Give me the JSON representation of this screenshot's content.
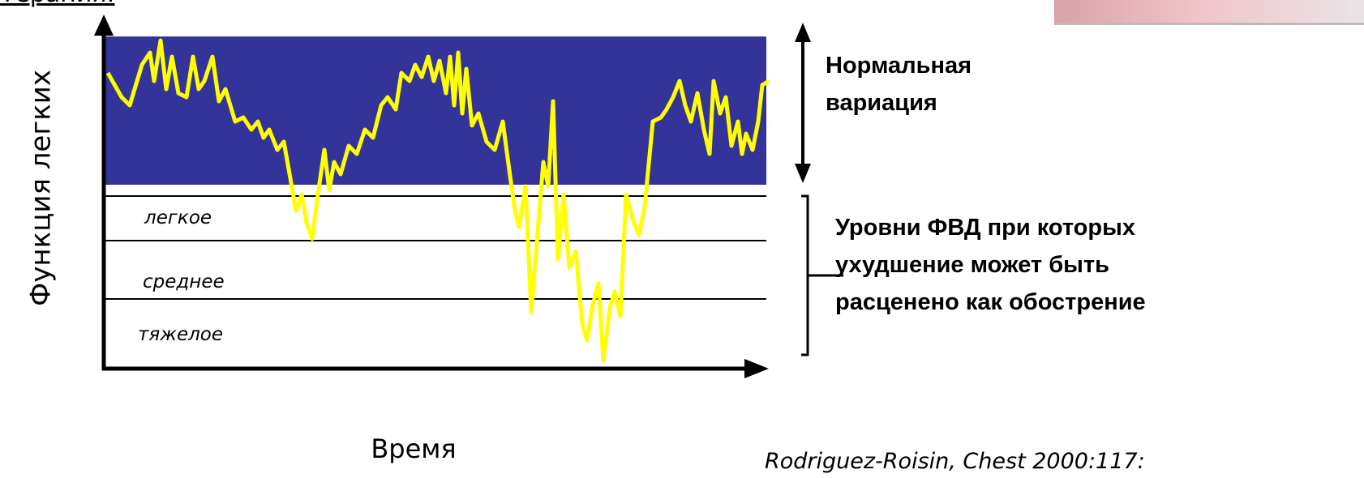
{
  "header": {
    "title": "Терапия:"
  },
  "axes": {
    "y_label": "Функция легких",
    "x_label": "Время"
  },
  "zones": [
    "легкое",
    "среднее",
    "тяжелое"
  ],
  "notes": {
    "normal": [
      "Нормальная",
      "вариация"
    ],
    "exacerbation": [
      "Уровни ФВД при которых",
      "ухудшение может быть",
      "расценено как обострение"
    ]
  },
  "citation": "Rodriguez-Roisin, Chest 2000:117:"
}
